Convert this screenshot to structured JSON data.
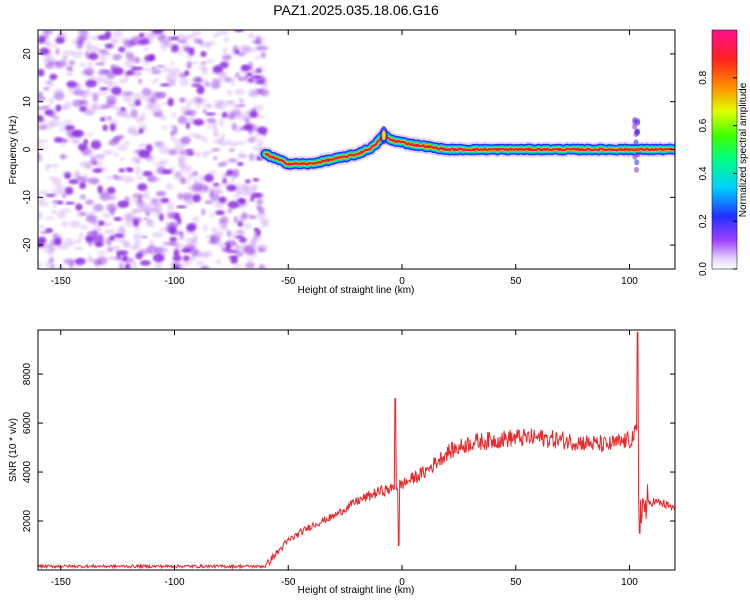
{
  "title": "PAZ1.2025.035.18.06.G16",
  "colors": {
    "snr_line": "#e8272b",
    "spectrogram_noise": "#8b2be2",
    "ridge_peak": "#e81c3c"
  },
  "chart_data": [
    {
      "type": "heatmap",
      "xlabel": "Height of straight line (km)",
      "ylabel": "Frequency (Hz)",
      "xlim": [
        -160,
        120
      ],
      "ylim": [
        -25,
        25
      ],
      "xticks": [
        -150,
        -100,
        -50,
        0,
        50,
        100
      ],
      "yticks": [
        -20,
        -10,
        0,
        10,
        20
      ],
      "colorbar": {
        "label": "Normalized spectral amplitude",
        "range": [
          0,
          1
        ],
        "ticks": [
          "0.0",
          "0.2",
          "0.4",
          "0.6",
          "0.8"
        ],
        "colormap": "rainbow (white-violet-blue-cyan-green-yellow-orange-red-magenta)"
      },
      "noise_region_x": [
        -160,
        -60
      ],
      "ridge": {
        "x": [
          -60,
          -55,
          -50,
          -45,
          -40,
          -35,
          -30,
          -25,
          -20,
          -15,
          -12,
          -10,
          -8,
          -5,
          0,
          5,
          10,
          15,
          20,
          30,
          50,
          75,
          100,
          103,
          106,
          120
        ],
        "y": [
          -1,
          -2,
          -3,
          -3,
          -3,
          -2.5,
          -2,
          -1.5,
          -1,
          0,
          0.8,
          2,
          3,
          2,
          1.5,
          1,
          0.7,
          0.3,
          0,
          0,
          0,
          0,
          0,
          0,
          0,
          0
        ]
      },
      "features": [
        "noise below -60 km",
        "spectral spike near -8 km",
        "vertical spread near 103 km"
      ]
    },
    {
      "type": "line",
      "xlabel": "Height of straight line (km)",
      "ylabel": "SNR (10 * v/v)",
      "xlim": [
        -160,
        120
      ],
      "ylim": [
        0,
        9800
      ],
      "xticks": [
        -150,
        -100,
        -50,
        0,
        50,
        100
      ],
      "yticks": [
        2000,
        4000,
        6000,
        8000
      ],
      "envelope_x": [
        -160,
        -60,
        -57,
        -50,
        -40,
        -30,
        -20,
        -10,
        -5,
        0,
        10,
        20,
        30,
        40,
        50,
        60,
        70,
        80,
        90,
        100,
        103,
        104,
        106,
        110,
        115,
        120
      ],
      "envelope_y": [
        150,
        150,
        500,
        1200,
        1800,
        2200,
        2800,
        3200,
        3300,
        3500,
        4000,
        4800,
        5200,
        5300,
        5400,
        5400,
        5300,
        5200,
        5100,
        5300,
        5600,
        3000,
        2500,
        2800,
        2700,
        2500
      ],
      "spikes": [
        {
          "x": -3,
          "y": 7000
        },
        {
          "x": -1.5,
          "y": 1000
        },
        {
          "x": 103.5,
          "y": 9700
        },
        {
          "x": 104.5,
          "y": 1500
        }
      ]
    }
  ]
}
